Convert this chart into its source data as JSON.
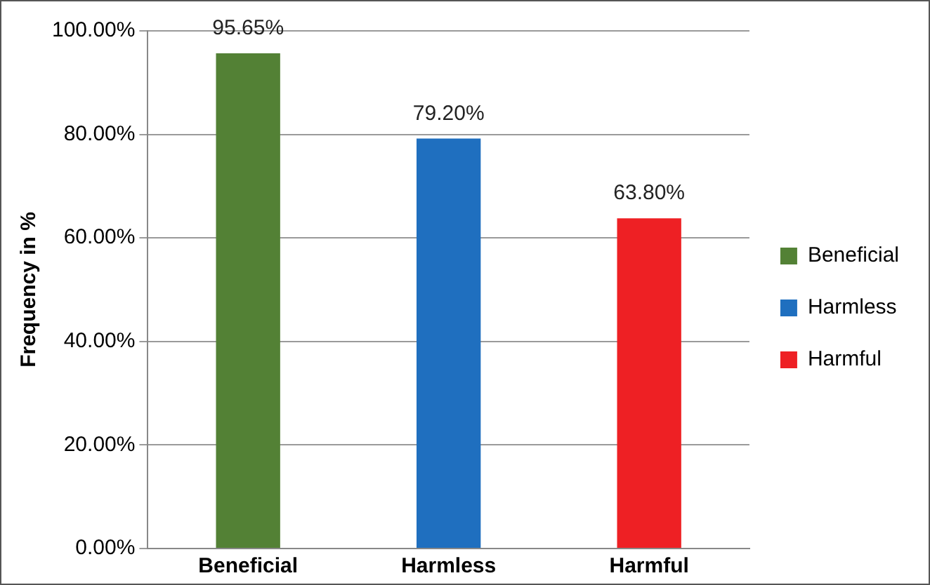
{
  "chart_data": {
    "type": "bar",
    "ylabel": "Frequency in %",
    "categories": [
      "Beneficial",
      "Harmless",
      "Harmful"
    ],
    "series": [
      {
        "name": "Beneficial",
        "color": "#538135",
        "values": [
          95.65,
          null,
          null
        ],
        "value_labels": [
          "95.65%",
          null,
          null
        ]
      },
      {
        "name": "Harmless",
        "color": "#1f6fbf",
        "values": [
          null,
          79.2,
          null
        ],
        "value_labels": [
          null,
          "79.20%",
          null
        ]
      },
      {
        "name": "Harmful",
        "color": "#ee2024",
        "values": [
          null,
          null,
          63.8
        ],
        "value_labels": [
          null,
          null,
          "63.80%"
        ]
      }
    ],
    "ylim": [
      0,
      100
    ],
    "yticks": [
      {
        "value": 0,
        "label": "0.00%"
      },
      {
        "value": 20,
        "label": "20.00%"
      },
      {
        "value": 40,
        "label": "40.00%"
      },
      {
        "value": 60,
        "label": "60.00%"
      },
      {
        "value": 80,
        "label": "80.00%"
      },
      {
        "value": 100,
        "label": "100.00%"
      }
    ],
    "grid": "y",
    "legend": "right"
  }
}
